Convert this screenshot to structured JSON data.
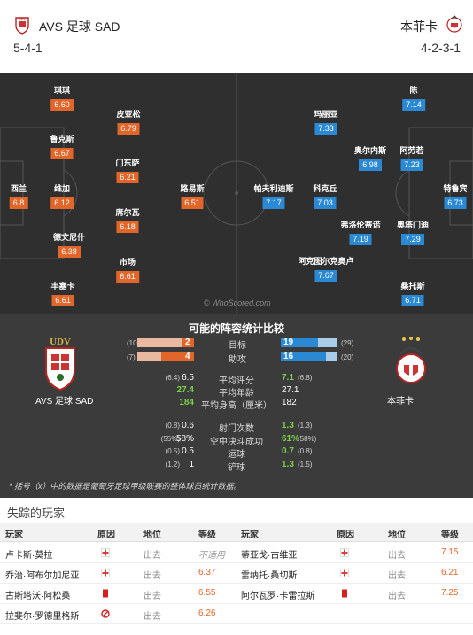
{
  "header": {
    "home": {
      "name": "AVS 足球 SAD",
      "formation": "5-4-1"
    },
    "away": {
      "name": "本菲卡",
      "formation": "4-2-3-1"
    }
  },
  "pitch": {
    "watermark": "© WhoScored.com",
    "home_players": [
      {
        "name": "琪琪",
        "rating": "6.60"
      },
      {
        "name": "皮亚松",
        "rating": "6.79"
      },
      {
        "name": "鲁克斯",
        "rating": "6.67"
      },
      {
        "name": "门东萨",
        "rating": "6.21"
      },
      {
        "name": "西兰",
        "rating": "6.8"
      },
      {
        "name": "维加",
        "rating": "6.12"
      },
      {
        "name": "路易斯",
        "rating": "6.51"
      },
      {
        "name": "席尔瓦",
        "rating": "6.18"
      },
      {
        "name": "德文尼什",
        "rating": "6.38"
      },
      {
        "name": "市场",
        "rating": "6.61"
      },
      {
        "name": "丰塞卡",
        "rating": "6.61"
      }
    ],
    "away_players": [
      {
        "name": "陈",
        "rating": "7.14"
      },
      {
        "name": "玛丽亚",
        "rating": "7.33"
      },
      {
        "name": "奥尔内斯",
        "rating": "6.98"
      },
      {
        "name": "阿劳若",
        "rating": "7.23"
      },
      {
        "name": "帕夫利迪斯",
        "rating": "7.17"
      },
      {
        "name": "科克丘",
        "rating": "7.03"
      },
      {
        "name": "特鲁宾",
        "rating": "6.73"
      },
      {
        "name": "弗洛伦蒂诺",
        "rating": "7.19"
      },
      {
        "name": "奥塔门迪",
        "rating": "7.29"
      },
      {
        "name": "阿克图尔克奥卢",
        "rating": "7.67"
      },
      {
        "name": "桑托斯",
        "rating": "6.71"
      }
    ]
  },
  "stats": {
    "title": "可能的阵容统计比较",
    "home_team": "AVS 足球 SAD",
    "away_team": "本菲卡",
    "bar_rows": [
      {
        "label": "目标",
        "home": "2",
        "home_season": "(10",
        "away": "19",
        "away_season": "(29)",
        "home_frac": 0.2,
        "away_frac": 0.655
      },
      {
        "label": "助攻",
        "home": "4",
        "home_season": "(7)",
        "away": "16",
        "away_season": "(20)",
        "home_frac": 0.571,
        "away_frac": 0.8
      }
    ],
    "rows_a": [
      {
        "label": "平均评分",
        "home": "6.5",
        "home_season": "(6.4)",
        "away": "7.1",
        "away_season": "(6.8)"
      },
      {
        "label": "平均年龄",
        "home": "27.4",
        "home_season": "",
        "away": "27.1",
        "away_season": ""
      },
      {
        "label": "平均身高（厘米）",
        "home": "184",
        "home_season": "",
        "away": "182",
        "away_season": ""
      }
    ],
    "rows_b": [
      {
        "label": "射门次数",
        "home": "0.6",
        "home_season": "(0.8)",
        "away": "1.3",
        "away_season": "(1.3)"
      },
      {
        "label": "空中决斗成功",
        "home": "58%",
        "home_season": "(55%)",
        "away": "61%",
        "away_season": "(58%)"
      },
      {
        "label": "运球",
        "home": "0.5",
        "home_season": "(0.5)",
        "away": "0.7",
        "away_season": "(0.8)"
      },
      {
        "label": "铲球",
        "home": "1",
        "home_season": "(1.2)",
        "away": "1.3",
        "away_season": "(1.5)"
      }
    ],
    "footnote": "* 括号（x）中的数据是葡萄牙足球甲级联赛的整体球员统计数据。"
  },
  "missing": {
    "title": "失踪的玩家",
    "headers": [
      "玩家",
      "原因",
      "地位",
      "等级"
    ],
    "home": [
      {
        "player": "卢卡斯·莫拉",
        "reason": "injury",
        "status": "出去",
        "rating": "不适用"
      },
      {
        "player": "乔治·阿布尔加尼亚",
        "reason": "injury",
        "status": "出去",
        "rating": "6.37"
      },
      {
        "player": "古斯塔沃·阿松桑",
        "reason": "card",
        "status": "出去",
        "rating": "6.55"
      },
      {
        "player": "拉斐尔·罗德里格斯",
        "reason": "banned",
        "status": "出去",
        "rating": "6.26"
      }
    ],
    "away": [
      {
        "player": "蒂亚戈·古维亚",
        "reason": "injury",
        "status": "出去",
        "rating": "7.15"
      },
      {
        "player": "雷纳托·桑切斯",
        "reason": "injury",
        "status": "出去",
        "rating": "6.21"
      },
      {
        "player": "阿尔瓦罗·卡雷拉斯",
        "reason": "card",
        "status": "出去",
        "rating": "7.25"
      }
    ]
  },
  "colors": {
    "home": "#e2662a",
    "away": "#2a89d2",
    "pitch": "#2f2f2f",
    "stats_bg": "#3b3b3b",
    "positive": "#7ad14a"
  }
}
